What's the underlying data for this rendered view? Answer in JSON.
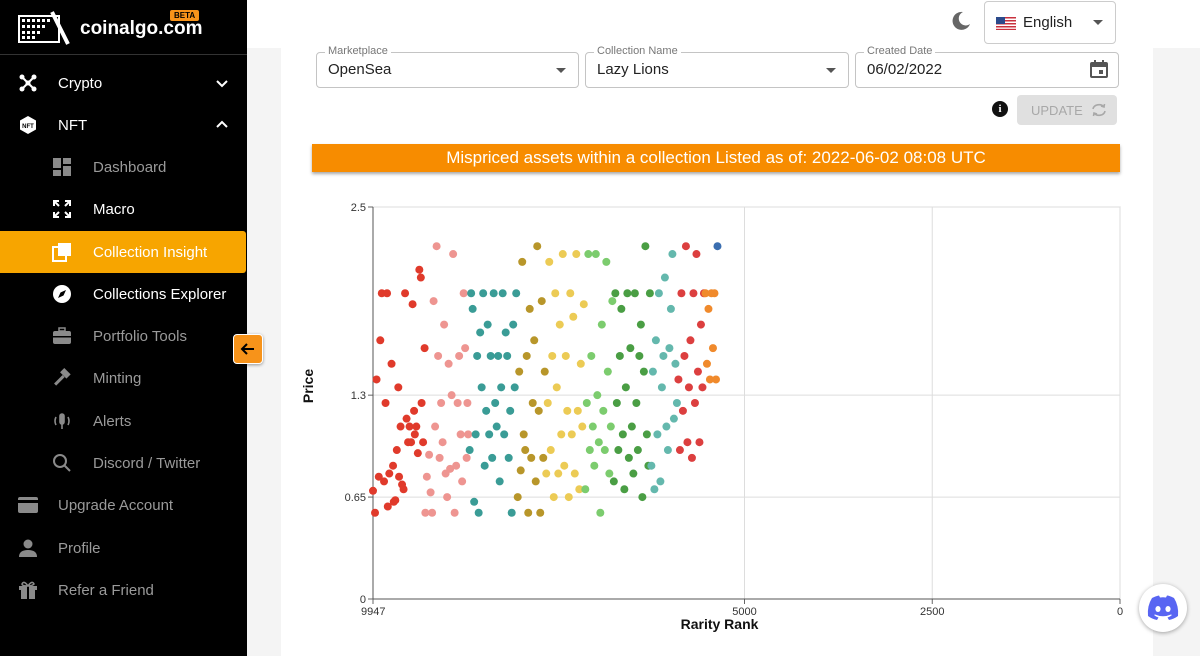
{
  "brand": {
    "name": "coinalgo.com",
    "badge": "BETA"
  },
  "sidebar": {
    "items": [
      {
        "label": "Crypto",
        "icon": "network-icon"
      },
      {
        "label": "NFT",
        "icon": "nft-icon"
      },
      {
        "label": "Dashboard",
        "icon": "dashboard-icon"
      },
      {
        "label": "Macro",
        "icon": "expand-icon"
      },
      {
        "label": "Collection Insight",
        "icon": "collection-icon"
      },
      {
        "label": "Collections Explorer",
        "icon": "compass-icon"
      },
      {
        "label": "Portfolio Tools",
        "icon": "briefcase-icon"
      },
      {
        "label": "Minting",
        "icon": "hammer-icon"
      },
      {
        "label": "Alerts",
        "icon": "alert-icon"
      },
      {
        "label": "Discord / Twitter",
        "icon": "search-icon"
      },
      {
        "label": "Upgrade Account",
        "icon": "card-icon"
      },
      {
        "label": "Profile",
        "icon": "person-icon"
      },
      {
        "label": "Refer a Friend",
        "icon": "gift-icon"
      }
    ]
  },
  "header": {
    "language": "English"
  },
  "filters": {
    "marketplace": {
      "label": "Marketplace",
      "value": "OpenSea"
    },
    "collection": {
      "label": "Collection Name",
      "value": "Lazy Lions"
    },
    "date": {
      "label": "Created Date",
      "value": "06/02/2022"
    },
    "update_label": "UPDATE"
  },
  "banner": "Mispriced assets within a collection Listed as of: 2022-06-02 08:08 UTC",
  "colors": {
    "accent": "#f7a500",
    "banner": "#f78c00"
  },
  "chart_data": {
    "type": "scatter",
    "xlabel": "Rarity Rank",
    "ylabel": "Price",
    "xlim": [
      9947,
      0
    ],
    "ylim": [
      0,
      2.5
    ],
    "x_ticks": [
      "9947",
      "5000",
      "2500",
      "0"
    ],
    "y_ticks": [
      "0",
      "0.65",
      "1.3",
      "2.5"
    ],
    "grid": true,
    "series": [
      {
        "color": "#e03a2b",
        "points": [
          [
            9947,
            0.69
          ],
          [
            9920,
            0.55
          ],
          [
            9900,
            1.4
          ],
          [
            9870,
            0.78
          ],
          [
            9850,
            1.65
          ],
          [
            9830,
            1.95
          ],
          [
            9800,
            0.75
          ],
          [
            9780,
            1.25
          ],
          [
            9760,
            1.95
          ],
          [
            9750,
            0.59
          ],
          [
            9730,
            0.8
          ],
          [
            9700,
            1.5
          ],
          [
            9680,
            0.85
          ],
          [
            9670,
            0.62
          ],
          [
            9650,
            0.63
          ],
          [
            9630,
            0.95
          ],
          [
            9610,
            1.35
          ],
          [
            9600,
            0.78
          ],
          [
            9580,
            1.1
          ],
          [
            9560,
            0.73
          ],
          [
            9540,
            0.7
          ],
          [
            9520,
            1.95
          ],
          [
            9500,
            1.15
          ],
          [
            9480,
            1.0
          ],
          [
            9460,
            1.1
          ],
          [
            9440,
            1.0
          ],
          [
            9420,
            1.88
          ],
          [
            9400,
            1.2
          ],
          [
            9390,
            1.05
          ],
          [
            9370,
            1.1
          ],
          [
            9350,
            0.93
          ],
          [
            9330,
            2.1
          ],
          [
            9310,
            2.05
          ],
          [
            9300,
            1.25
          ],
          [
            9280,
            1.0
          ],
          [
            9260,
            1.6
          ]
        ]
      },
      {
        "color": "#ee9591",
        "points": [
          [
            9250,
            0.55
          ],
          [
            9230,
            0.78
          ],
          [
            9200,
            0.92
          ],
          [
            9180,
            0.68
          ],
          [
            9160,
            0.55
          ],
          [
            9140,
            1.9
          ],
          [
            9120,
            1.1
          ],
          [
            9100,
            2.25
          ],
          [
            9080,
            1.55
          ],
          [
            9060,
            0.9
          ],
          [
            9040,
            1.25
          ],
          [
            9020,
            1.0
          ],
          [
            9000,
            1.75
          ],
          [
            8980,
            0.8
          ],
          [
            8960,
            0.65
          ],
          [
            8940,
            1.5
          ],
          [
            8920,
            0.83
          ],
          [
            8900,
            1.3
          ],
          [
            8880,
            2.2
          ],
          [
            8860,
            0.55
          ],
          [
            8840,
            0.85
          ],
          [
            8820,
            1.25
          ],
          [
            8800,
            1.55
          ],
          [
            8780,
            1.05
          ],
          [
            8760,
            0.75
          ],
          [
            8740,
            1.95
          ],
          [
            8720,
            1.6
          ],
          [
            8700,
            0.9
          ],
          [
            8690,
            1.25
          ],
          [
            8680,
            1.05
          ]
        ]
      },
      {
        "color": "#3a9c96",
        "points": [
          [
            8660,
            0.95
          ],
          [
            8640,
            1.95
          ],
          [
            8620,
            1.85
          ],
          [
            8600,
            0.62
          ],
          [
            8580,
            1.05
          ],
          [
            8560,
            1.55
          ],
          [
            8540,
            0.55
          ],
          [
            8520,
            1.7
          ],
          [
            8500,
            1.35
          ],
          [
            8480,
            1.95
          ],
          [
            8460,
            0.85
          ],
          [
            8440,
            1.2
          ],
          [
            8420,
            1.75
          ],
          [
            8400,
            1.05
          ],
          [
            8380,
            1.55
          ],
          [
            8360,
            0.9
          ],
          [
            8340,
            1.95
          ],
          [
            8320,
            1.25
          ],
          [
            8300,
            1.1
          ],
          [
            8280,
            1.55
          ],
          [
            8260,
            0.75
          ],
          [
            8240,
            1.35
          ],
          [
            8220,
            1.95
          ],
          [
            8200,
            1.05
          ],
          [
            8180,
            1.7
          ],
          [
            8160,
            1.55
          ],
          [
            8140,
            0.9
          ],
          [
            8120,
            1.2
          ],
          [
            8100,
            0.55
          ],
          [
            8080,
            1.75
          ],
          [
            8060,
            1.35
          ],
          [
            8040,
            1.95
          ]
        ]
      },
      {
        "color": "#b8962a",
        "points": [
          [
            8020,
            0.65
          ],
          [
            8000,
            1.45
          ],
          [
            7980,
            0.82
          ],
          [
            7960,
            2.15
          ],
          [
            7940,
            1.05
          ],
          [
            7920,
            0.95
          ],
          [
            7900,
            1.55
          ],
          [
            7880,
            0.55
          ],
          [
            7860,
            1.85
          ],
          [
            7840,
            0.9
          ],
          [
            7820,
            1.25
          ],
          [
            7800,
            1.65
          ],
          [
            7780,
            0.75
          ],
          [
            7760,
            2.25
          ],
          [
            7740,
            1.2
          ],
          [
            7720,
            0.55
          ],
          [
            7700,
            1.9
          ],
          [
            7680,
            0.9
          ],
          [
            7660,
            1.45
          ]
        ]
      },
      {
        "color": "#eccb55",
        "points": [
          [
            7640,
            0.8
          ],
          [
            7620,
            1.25
          ],
          [
            7600,
            2.15
          ],
          [
            7580,
            0.95
          ],
          [
            7560,
            1.55
          ],
          [
            7540,
            0.65
          ],
          [
            7520,
            1.95
          ],
          [
            7500,
            1.35
          ],
          [
            7480,
            0.8
          ],
          [
            7460,
            1.75
          ],
          [
            7440,
            1.05
          ],
          [
            7420,
            2.2
          ],
          [
            7400,
            0.85
          ],
          [
            7380,
            1.55
          ],
          [
            7360,
            1.2
          ],
          [
            7340,
            0.65
          ],
          [
            7320,
            1.95
          ],
          [
            7300,
            1.05
          ],
          [
            7280,
            1.8
          ],
          [
            7260,
            0.8
          ],
          [
            7240,
            2.2
          ],
          [
            7220,
            1.2
          ],
          [
            7200,
            0.7
          ],
          [
            7180,
            1.5
          ],
          [
            7160,
            1.1
          ],
          [
            7140,
            1.88
          ]
        ]
      },
      {
        "color": "#7ccc6e",
        "points": [
          [
            7120,
            0.7
          ],
          [
            7100,
            1.25
          ],
          [
            7080,
            2.2
          ],
          [
            7060,
            0.95
          ],
          [
            7040,
            1.55
          ],
          [
            7020,
            1.1
          ],
          [
            7000,
            0.85
          ],
          [
            6980,
            2.2
          ],
          [
            6960,
            1.3
          ],
          [
            6940,
            1.0
          ],
          [
            6920,
            0.55
          ],
          [
            6900,
            1.75
          ],
          [
            6880,
            1.2
          ],
          [
            6860,
            0.95
          ],
          [
            6840,
            2.15
          ],
          [
            6820,
            1.45
          ],
          [
            6800,
            0.8
          ],
          [
            6780,
            1.1
          ],
          [
            6760,
            1.9
          ]
        ]
      },
      {
        "color": "#4a9e44",
        "points": [
          [
            6740,
            0.75
          ],
          [
            6720,
            1.95
          ],
          [
            6700,
            1.25
          ],
          [
            6680,
            0.95
          ],
          [
            6660,
            1.55
          ],
          [
            6640,
            1.85
          ],
          [
            6620,
            1.05
          ],
          [
            6600,
            0.7
          ],
          [
            6580,
            1.35
          ],
          [
            6560,
            1.95
          ],
          [
            6540,
            0.9
          ],
          [
            6520,
            1.6
          ],
          [
            6500,
            1.1
          ],
          [
            6480,
            0.8
          ],
          [
            6460,
            1.95
          ],
          [
            6440,
            1.25
          ],
          [
            6420,
            0.95
          ],
          [
            6400,
            1.55
          ],
          [
            6380,
            1.75
          ],
          [
            6360,
            0.65
          ],
          [
            6340,
            1.45
          ],
          [
            6320,
            2.25
          ],
          [
            6300,
            1.05
          ],
          [
            6280,
            0.85
          ],
          [
            6260,
            1.95
          ]
        ]
      },
      {
        "color": "#64b8ad",
        "points": [
          [
            6240,
            0.85
          ],
          [
            6220,
            1.45
          ],
          [
            6200,
            0.7
          ],
          [
            6180,
            1.65
          ],
          [
            6160,
            1.05
          ],
          [
            6140,
            1.95
          ],
          [
            6120,
            0.75
          ],
          [
            6100,
            1.35
          ],
          [
            6080,
            1.55
          ],
          [
            6060,
            2.05
          ],
          [
            6040,
            1.1
          ],
          [
            6020,
            0.95
          ],
          [
            6000,
            1.6
          ],
          [
            5980,
            1.85
          ],
          [
            5960,
            2.2
          ],
          [
            5940,
            1.15
          ],
          [
            5920,
            1.5
          ],
          [
            5900,
            1.25
          ]
        ]
      },
      {
        "color": "#dc3f3f",
        "points": [
          [
            5880,
            1.4
          ],
          [
            5860,
            0.95
          ],
          [
            5840,
            1.95
          ],
          [
            5820,
            1.2
          ],
          [
            5800,
            1.55
          ],
          [
            5780,
            2.25
          ],
          [
            5760,
            1.0
          ],
          [
            5740,
            1.35
          ],
          [
            5720,
            1.65
          ],
          [
            5700,
            0.9
          ],
          [
            5680,
            1.95
          ],
          [
            5660,
            1.25
          ],
          [
            5640,
            2.2
          ],
          [
            5620,
            1.45
          ],
          [
            5600,
            1.0
          ],
          [
            5580,
            1.75
          ],
          [
            5560,
            1.35
          ],
          [
            5540,
            1.95
          ]
        ]
      },
      {
        "color": "#f08a2c",
        "points": [
          [
            5520,
            1.95
          ],
          [
            5500,
            1.5
          ],
          [
            5480,
            1.85
          ],
          [
            5460,
            1.4
          ],
          [
            5440,
            1.95
          ],
          [
            5420,
            1.6
          ],
          [
            5400,
            1.95
          ],
          [
            5380,
            1.4
          ]
        ]
      },
      {
        "color": "#3b6eb0",
        "points": [
          [
            5360,
            2.25
          ]
        ]
      }
    ]
  }
}
